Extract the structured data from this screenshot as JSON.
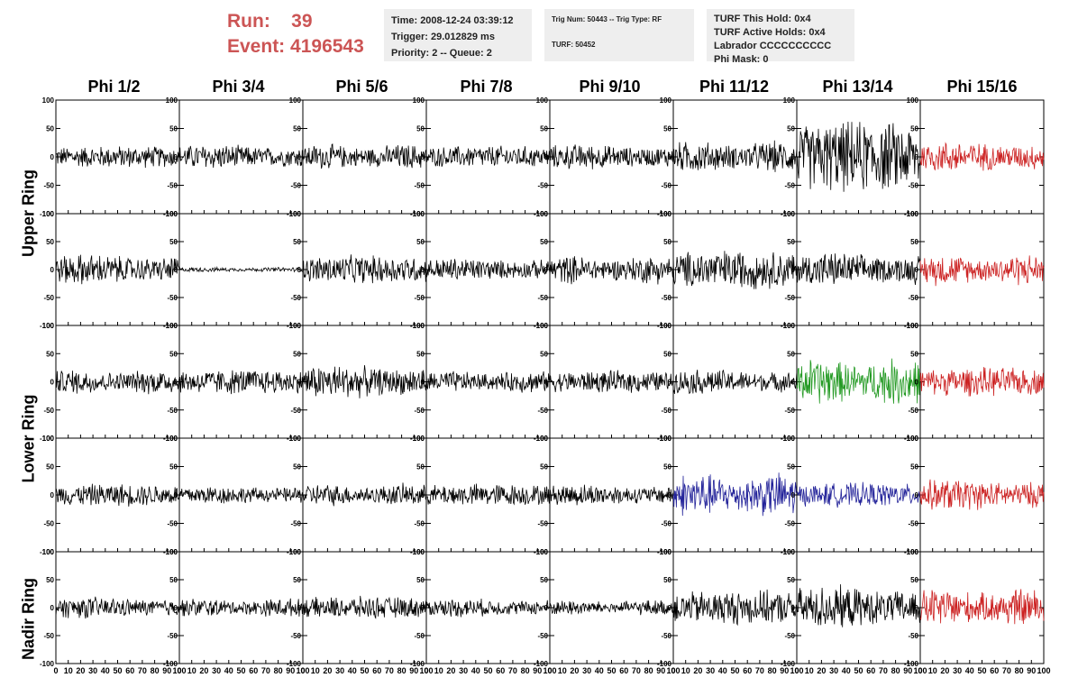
{
  "run": {
    "run_label": "Run:",
    "run_value": "39",
    "event_label": "Event:",
    "event_value": "4196543"
  },
  "info_time": {
    "line1": "Time: 2008-12-24 03:39:12",
    "line2": "Trigger: 29.012829 ms",
    "line3": "Priority: 2 -- Queue: 2"
  },
  "info_trig": {
    "line1": "Trig Num: 50443 -- Trig Type: RF",
    "line2": "TURF: 50452"
  },
  "info_turf": {
    "line1": "TURF This Hold: 0x4",
    "line2": "TURF Active Holds: 0x4",
    "line3": "Labrador CCCCCCCCCC",
    "line4": "Phi Mask: 0"
  },
  "columns": [
    "Phi 1/2",
    "Phi 3/4",
    "Phi 5/6",
    "Phi 7/8",
    "Phi 9/10",
    "Phi 11/12",
    "Phi 13/14",
    "Phi 15/16"
  ],
  "ring_labels": {
    "upper": "Upper Ring",
    "lower": "Lower Ring",
    "nadir": "Nadir Ring"
  },
  "colors": {
    "black": "#000000",
    "red": "#cc2222",
    "green": "#229922",
    "blue": "#222299",
    "title_red": "#cc5555"
  },
  "chart_data": {
    "type": "line",
    "description_axes": "waveform grid, 5 rows x 8 columns",
    "x_range": [
      0,
      100
    ],
    "y_range": [
      -100,
      100
    ],
    "x_ticks": [
      "0",
      "10",
      "20",
      "30",
      "40",
      "50",
      "60",
      "70",
      "80",
      "90",
      "100"
    ],
    "y_ticks": [
      "100",
      "50",
      "0",
      "-50",
      "-100"
    ],
    "panels": [
      [
        {
          "amp": 14,
          "color": "black"
        },
        {
          "amp": 16,
          "color": "black"
        },
        {
          "amp": 16,
          "color": "black"
        },
        {
          "amp": 14,
          "color": "black"
        },
        {
          "amp": 16,
          "color": "black"
        },
        {
          "amp": 20,
          "color": "black"
        },
        {
          "amp": 45,
          "color": "black"
        },
        {
          "amp": 20,
          "color": "red"
        }
      ],
      [
        {
          "amp": 20,
          "color": "black"
        },
        {
          "amp": 3,
          "color": "black"
        },
        {
          "amp": 18,
          "color": "black"
        },
        {
          "amp": 15,
          "color": "black"
        },
        {
          "amp": 18,
          "color": "black"
        },
        {
          "amp": 25,
          "color": "black"
        },
        {
          "amp": 22,
          "color": "black"
        },
        {
          "amp": 20,
          "color": "red"
        }
      ],
      [
        {
          "amp": 16,
          "color": "black"
        },
        {
          "amp": 16,
          "color": "black"
        },
        {
          "amp": 22,
          "color": "black"
        },
        {
          "amp": 14,
          "color": "black"
        },
        {
          "amp": 14,
          "color": "black"
        },
        {
          "amp": 16,
          "color": "black"
        },
        {
          "amp": 30,
          "color": "green"
        },
        {
          "amp": 18,
          "color": "red"
        }
      ],
      [
        {
          "amp": 14,
          "color": "black"
        },
        {
          "amp": 12,
          "color": "black"
        },
        {
          "amp": 14,
          "color": "black"
        },
        {
          "amp": 14,
          "color": "black"
        },
        {
          "amp": 14,
          "color": "black"
        },
        {
          "amp": 28,
          "color": "blue"
        },
        {
          "amp": 15,
          "color": "blue"
        },
        {
          "amp": 20,
          "color": "red"
        }
      ],
      [
        {
          "amp": 14,
          "color": "black"
        },
        {
          "amp": 12,
          "color": "black"
        },
        {
          "amp": 14,
          "color": "black"
        },
        {
          "amp": 12,
          "color": "black"
        },
        {
          "amp": 10,
          "color": "black"
        },
        {
          "amp": 22,
          "color": "black"
        },
        {
          "amp": 28,
          "color": "black"
        },
        {
          "amp": 25,
          "color": "red"
        }
      ]
    ]
  }
}
